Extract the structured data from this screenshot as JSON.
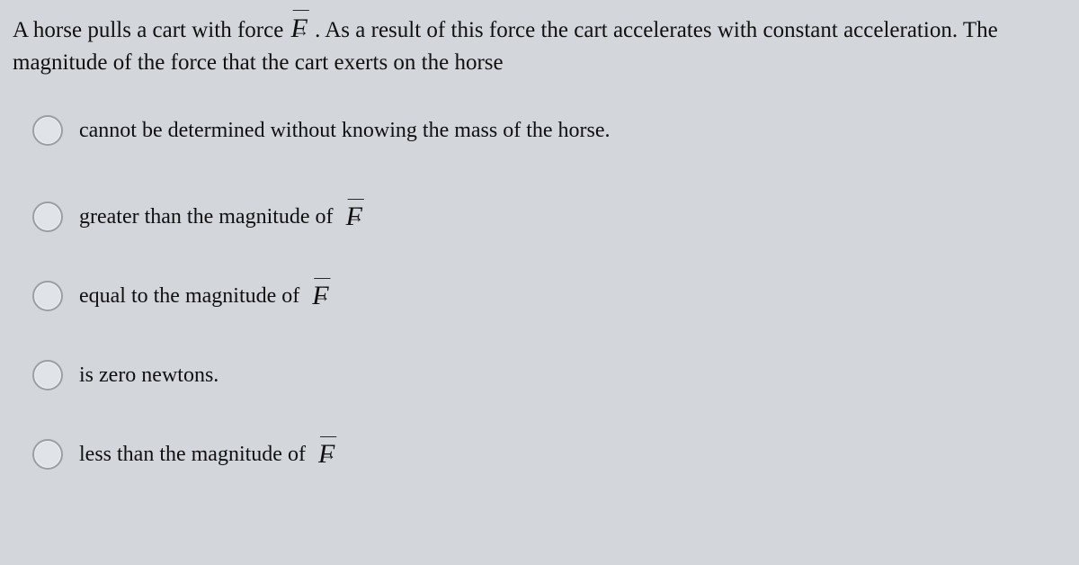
{
  "question": {
    "segments": [
      {
        "type": "text",
        "value": "A horse pulls a cart with force "
      },
      {
        "type": "fvec",
        "value": "F"
      },
      {
        "type": "text",
        "value": " . As a result of this force the cart accelerates with constant acceleration. The magnitude of the force that the cart exerts on the horse"
      }
    ]
  },
  "choices": [
    {
      "type": "plain",
      "text": "cannot be determined without knowing the mass of the horse."
    },
    {
      "type": "withF",
      "prefix": "greater than the magnitude of ",
      "F": "F"
    },
    {
      "type": "withF",
      "prefix": "equal to the magnitude of ",
      "F": "F"
    },
    {
      "type": "plain",
      "text": "is zero newtons."
    },
    {
      "type": "withF",
      "prefix": "less than the magnitude of ",
      "F": "F"
    }
  ],
  "styling": {
    "background_color": "#d3d7dc",
    "text_color": "#101010",
    "radio_border": "#9a9fa6",
    "radio_fill": "#e0e3e7",
    "question_fontsize": 25,
    "choice_fontsize": 24,
    "fvec_fontsize": 30
  }
}
